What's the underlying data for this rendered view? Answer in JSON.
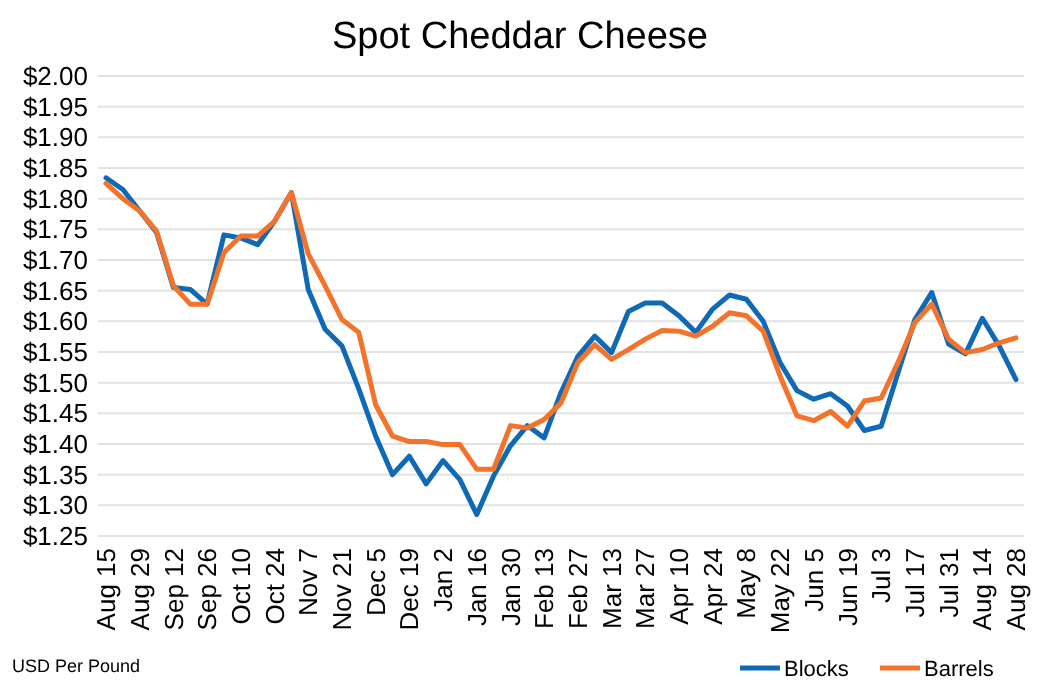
{
  "chart_data": {
    "type": "line",
    "title": "Spot Cheddar Cheese",
    "annotations": [
      "USD Per Pound"
    ],
    "categories": [
      "Aug 15",
      null,
      "Aug 29",
      null,
      "Sep 12",
      null,
      "Sep 26",
      null,
      "Oct 10",
      null,
      "Oct 24",
      null,
      "Nov 7",
      null,
      "Nov 21",
      null,
      "Dec 5",
      null,
      "Dec 19",
      null,
      "Jan 2",
      null,
      "Jan 16",
      null,
      "Jan 30",
      null,
      "Feb 13",
      null,
      "Feb 27",
      null,
      "Mar 13",
      null,
      "Mar 27",
      null,
      "Apr 10",
      null,
      "Apr 24",
      null,
      "May 8",
      null,
      "May 22",
      null,
      "Jun 5",
      null,
      "Jun 19",
      null,
      "Jul 3",
      null,
      "Jul 17",
      null,
      "Jul 31",
      null,
      "Aug 14",
      null,
      "Aug 28"
    ],
    "series": [
      {
        "name": "Blocks",
        "color": "#0f69b4",
        "values": [
          1.834,
          1.815,
          1.78,
          1.745,
          1.655,
          1.652,
          1.628,
          1.741,
          1.736,
          1.725,
          1.763,
          1.81,
          1.652,
          1.587,
          1.56,
          1.49,
          1.413,
          1.35,
          1.38,
          1.335,
          1.373,
          1.342,
          1.285,
          1.348,
          1.397,
          1.43,
          1.41,
          1.484,
          1.543,
          1.576,
          1.549,
          1.616,
          1.63,
          1.63,
          1.609,
          1.582,
          1.62,
          1.643,
          1.636,
          1.6,
          1.533,
          1.487,
          1.473,
          1.482,
          1.462,
          1.422,
          1.429,
          1.516,
          1.603,
          1.647,
          1.563,
          1.547,
          1.605,
          1.56,
          1.505
        ]
      },
      {
        "name": "Barrels",
        "color": "#f4732a",
        "values": [
          1.825,
          1.8,
          1.78,
          1.747,
          1.658,
          1.628,
          1.628,
          1.712,
          1.739,
          1.739,
          1.763,
          1.81,
          1.71,
          1.658,
          1.603,
          1.582,
          1.464,
          1.413,
          1.404,
          1.404,
          1.399,
          1.399,
          1.359,
          1.359,
          1.43,
          1.426,
          1.44,
          1.467,
          1.533,
          1.562,
          1.538,
          1.554,
          1.571,
          1.585,
          1.584,
          1.576,
          1.592,
          1.614,
          1.609,
          1.584,
          1.511,
          1.446,
          1.438,
          1.453,
          1.429,
          1.47,
          1.475,
          1.533,
          1.598,
          1.628,
          1.571,
          1.549,
          1.554,
          1.565,
          1.573
        ]
      }
    ],
    "ylim": [
      1.25,
      2.0
    ],
    "yticks": [
      {
        "value": 1.25,
        "label": "$1.25"
      },
      {
        "value": 1.3,
        "label": "$1.30"
      },
      {
        "value": 1.35,
        "label": "$1.35"
      },
      {
        "value": 1.4,
        "label": "$1.40"
      },
      {
        "value": 1.45,
        "label": "$1.45"
      },
      {
        "value": 1.5,
        "label": "$1.50"
      },
      {
        "value": 1.55,
        "label": "$1.55"
      },
      {
        "value": 1.6,
        "label": "$1.60"
      },
      {
        "value": 1.65,
        "label": "$1.65"
      },
      {
        "value": 1.7,
        "label": "$1.70"
      },
      {
        "value": 1.75,
        "label": "$1.75"
      },
      {
        "value": 1.8,
        "label": "$1.80"
      },
      {
        "value": 1.85,
        "label": "$1.85"
      },
      {
        "value": 1.9,
        "label": "$1.90"
      },
      {
        "value": 1.95,
        "label": "$1.95"
      },
      {
        "value": 2.0,
        "label": "$2.00"
      }
    ],
    "grid": "y",
    "legend": "bottom right",
    "marker": "none",
    "line_style": "solid"
  }
}
